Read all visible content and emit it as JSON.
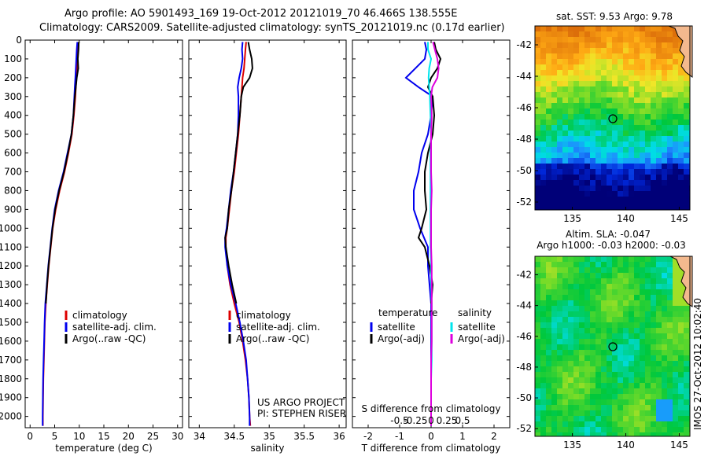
{
  "header": {
    "line1": "Argo profile: AO 5901493_169 19-Oct-2012 20121019_70 46.466S 138.555E",
    "line2": "Climatology: CARS2009. Satellite-adjusted climatology: synTS_20121019.nc (0.17d earlier)"
  },
  "colors": {
    "climatology": "#dd0000",
    "satellite_adj_clim": "#0000ee",
    "argo": "#000000",
    "salinity_satellite": "#00e5ee",
    "salinity_argo": "#dd00dd",
    "map_marker": "#000000"
  },
  "depth_axis": {
    "ticks": [
      0,
      100,
      200,
      300,
      400,
      500,
      600,
      700,
      800,
      900,
      1000,
      1100,
      1200,
      1300,
      1400,
      1500,
      1600,
      1700,
      1800,
      1900,
      2000
    ],
    "ylim": [
      0,
      2060
    ]
  },
  "chart_data": [
    {
      "type": "line",
      "panel": "temperature",
      "xlabel": "temperature (deg C)",
      "ylabel": "",
      "xlim": [
        -1,
        31
      ],
      "ylim": [
        0,
        2060
      ],
      "xticks": [
        0,
        5,
        10,
        15,
        20,
        25,
        30
      ],
      "legend": {
        "placement": "lower-center",
        "entries": [
          "climatology",
          "satellite-adj. clim.",
          "Argo(..raw -QC)"
        ]
      },
      "series": [
        {
          "name": "climatology",
          "color": "#dd0000",
          "depth": [
            10,
            50,
            100,
            150,
            200,
            250,
            300,
            400,
            500,
            600,
            700,
            800,
            900,
            1000,
            1100,
            1200,
            1300,
            1400,
            1500,
            1600,
            1700,
            1800,
            1900,
            2000,
            2050
          ],
          "values": [
            9.8,
            9.7,
            9.6,
            9.5,
            9.4,
            9.3,
            9.2,
            8.9,
            8.5,
            7.8,
            7.0,
            6.0,
            5.2,
            4.6,
            4.2,
            3.8,
            3.5,
            3.2,
            3.0,
            2.9,
            2.8,
            2.7,
            2.65,
            2.6,
            2.6
          ]
        },
        {
          "name": "satellite-adj. clim.",
          "color": "#0000ee",
          "depth": [
            10,
            50,
            100,
            150,
            200,
            250,
            300,
            400,
            500,
            600,
            700,
            800,
            900,
            1000,
            1100,
            1200,
            1300,
            1400,
            1500,
            1600,
            1700,
            1800,
            1900,
            2000,
            2050
          ],
          "values": [
            9.6,
            9.5,
            9.4,
            9.3,
            9.2,
            9.1,
            9.0,
            8.8,
            8.4,
            7.6,
            6.8,
            5.8,
            5.0,
            4.5,
            4.1,
            3.7,
            3.4,
            3.1,
            2.95,
            2.85,
            2.75,
            2.65,
            2.6,
            2.55,
            2.55
          ]
        },
        {
          "name": "Argo(..raw -QC)",
          "color": "#000000",
          "depth": [
            10,
            50,
            100,
            150,
            200,
            250,
            300,
            400,
            500,
            600,
            700,
            800,
            900,
            1000,
            1100,
            1200,
            1300,
            1400
          ],
          "values": [
            9.9,
            9.85,
            9.7,
            9.8,
            9.5,
            9.3,
            9.1,
            8.8,
            8.4,
            7.7,
            6.9,
            5.9,
            5.1,
            4.55,
            4.15,
            3.75,
            3.45,
            3.2
          ]
        }
      ]
    },
    {
      "type": "line",
      "panel": "salinity",
      "xlabel": "salinity",
      "ylabel": "",
      "xlim": [
        33.85,
        36.1
      ],
      "ylim": [
        0,
        2060
      ],
      "xticks": [
        34,
        34.5,
        35,
        35.5,
        36
      ],
      "xticklabels": [
        "34",
        "34.5",
        "35",
        "35.5",
        "36"
      ],
      "legend": {
        "placement": "lower-center",
        "entries": [
          "climatology",
          "satellite-adj. clim.",
          "Argo(..raw -QC)"
        ]
      },
      "series": [
        {
          "name": "climatology",
          "color": "#dd0000",
          "depth": [
            10,
            50,
            100,
            150,
            200,
            250,
            300,
            400,
            500,
            600,
            700,
            800,
            900,
            1000,
            1050,
            1100,
            1200,
            1300,
            1400,
            1500,
            1600,
            1700,
            1800,
            1900,
            2000,
            2050
          ],
          "values": [
            34.67,
            34.66,
            34.65,
            34.64,
            34.62,
            34.61,
            34.6,
            34.58,
            34.56,
            34.53,
            34.5,
            34.46,
            34.43,
            34.4,
            34.38,
            34.38,
            34.4,
            34.44,
            34.5,
            34.57,
            34.62,
            34.66,
            34.69,
            34.71,
            34.72,
            34.73
          ]
        },
        {
          "name": "satellite-adj. clim.",
          "color": "#0000ee",
          "depth": [
            10,
            50,
            100,
            150,
            200,
            250,
            300,
            400,
            500,
            600,
            700,
            800,
            900,
            1000,
            1050,
            1100,
            1200,
            1300,
            1400,
            1500,
            1600,
            1700,
            1800,
            1900,
            2000,
            2050
          ],
          "values": [
            34.62,
            34.61,
            34.62,
            34.6,
            34.57,
            34.55,
            34.56,
            34.56,
            34.55,
            34.52,
            34.49,
            34.45,
            34.42,
            34.39,
            34.37,
            34.37,
            34.4,
            34.45,
            34.52,
            34.58,
            34.63,
            34.67,
            34.69,
            34.71,
            34.72,
            34.72
          ]
        },
        {
          "name": "Argo(..raw -QC)",
          "color": "#000000",
          "depth": [
            10,
            50,
            100,
            150,
            200,
            250,
            300,
            400,
            500,
            600,
            700,
            800,
            900,
            1000,
            1050,
            1100,
            1200,
            1300,
            1400
          ],
          "values": [
            34.7,
            34.72,
            34.75,
            34.76,
            34.72,
            34.63,
            34.6,
            34.58,
            34.55,
            34.52,
            34.49,
            34.46,
            34.42,
            34.4,
            34.37,
            34.38,
            34.42,
            34.47,
            34.53
          ]
        }
      ]
    },
    {
      "type": "line",
      "panel": "difference",
      "xlabel": "T difference from climatology",
      "xlabel2": "S difference from climatology",
      "xlim": [
        -2.5,
        2.5
      ],
      "ylim": [
        0,
        2060
      ],
      "xticks": [
        -2,
        -1,
        0,
        1,
        2
      ],
      "xticks_top_row": [
        "-0.5",
        "-0.25",
        "0",
        "0.25",
        "0.5"
      ],
      "legend": {
        "placement": "lower-center",
        "headers": [
          "temperature",
          "salinity"
        ],
        "entries": [
          "satellite",
          "Argo(-adj)",
          "satellite",
          "Argo(-adj)"
        ]
      },
      "series": [
        {
          "name": "satellite",
          "group": "temperature",
          "color": "#0000ee",
          "depth": [
            10,
            50,
            100,
            150,
            200,
            250,
            300,
            400,
            500,
            600,
            700,
            800,
            900,
            1000,
            1100,
            1200,
            1300,
            1400,
            1500,
            1600,
            1700,
            1800,
            1900,
            2000,
            2050
          ],
          "values": [
            -0.2,
            -0.15,
            -0.2,
            -0.5,
            -0.8,
            -0.4,
            0.05,
            0.0,
            -0.1,
            -0.3,
            -0.4,
            -0.55,
            -0.55,
            -0.35,
            -0.1,
            -0.1,
            -0.05,
            0.0,
            0.0,
            0.0,
            0.0,
            0.0,
            0.0,
            0.0,
            0.0
          ]
        },
        {
          "name": "Argo(-adj)",
          "group": "temperature",
          "color": "#000000",
          "depth": [
            10,
            50,
            100,
            150,
            200,
            250,
            300,
            400,
            500,
            600,
            700,
            800,
            900,
            1000,
            1050,
            1100,
            1200,
            1300,
            1400
          ],
          "values": [
            0.1,
            0.15,
            0.3,
            0.2,
            0.0,
            -0.1,
            0.05,
            0.1,
            0.05,
            -0.1,
            -0.2,
            -0.2,
            -0.15,
            -0.3,
            -0.4,
            -0.2,
            -0.05,
            0.05,
            0.0
          ]
        },
        {
          "name": "satellite",
          "group": "salinity",
          "color": "#00e5ee",
          "depth": [
            10,
            50,
            100,
            150,
            200,
            250,
            300,
            400,
            500,
            600,
            700,
            800,
            900,
            1000,
            1100,
            1200,
            1300,
            1400,
            1500,
            1600,
            1700,
            1800,
            1900,
            2000,
            2050
          ],
          "values": [
            -0.05,
            -0.05,
            0.0,
            -0.03,
            -0.04,
            -0.03,
            -0.02,
            -0.01,
            0.0,
            -0.01,
            -0.01,
            -0.01,
            -0.01,
            -0.01,
            -0.01,
            0.0,
            0.0,
            0.01,
            0.01,
            0.01,
            0.01,
            0.0,
            0.0,
            0.0,
            0.0
          ]
        },
        {
          "name": "Argo(-adj)",
          "group": "salinity",
          "color": "#dd00dd",
          "depth": [
            10,
            50,
            100,
            150,
            200,
            250,
            300,
            400,
            500,
            600,
            700,
            800,
            900,
            1000,
            1100,
            1200,
            1300,
            1400,
            1500,
            1600,
            1700,
            1800,
            1900,
            2000,
            2050
          ],
          "values": [
            0.03,
            0.06,
            0.1,
            0.12,
            0.1,
            0.02,
            0.0,
            0.01,
            0.0,
            0.0,
            0.0,
            0.01,
            0.0,
            0.0,
            0.0,
            0.01,
            0.01,
            0.01,
            0.01,
            0.01,
            0.0,
            0.0,
            0.0,
            0.0,
            0.0
          ]
        }
      ]
    },
    {
      "type": "heatmap",
      "panel": "sst_map",
      "title": "sat. SST: 9.53 Argo: 9.78",
      "xlim": [
        131.5,
        146
      ],
      "ylim": [
        -52.5,
        -40.8
      ],
      "xticks": [
        135,
        140,
        145
      ],
      "yticks": [
        -42,
        -44,
        -46,
        -48,
        -50,
        -52
      ],
      "marker": {
        "lon": 138.555,
        "lat": -46.466
      }
    },
    {
      "type": "heatmap",
      "panel": "sla_map",
      "title": "Altim. SLA: -0.047",
      "subtitle": "Argo h1000: -0.03 h2000: -0.03",
      "xlim": [
        131.5,
        146
      ],
      "ylim": [
        -52.5,
        -40.8
      ],
      "xticks": [
        135,
        140,
        145
      ],
      "yticks": [
        -42,
        -44,
        -46,
        -48,
        -50,
        -52
      ],
      "marker": {
        "lon": 138.555,
        "lat": -46.466
      }
    }
  ],
  "annotations": {
    "project": "US ARGO PROJECT",
    "pi": "PI: STEPHEN RISER",
    "imos_stamp": "IMOS 27-Oct-2012 10:02:40"
  }
}
